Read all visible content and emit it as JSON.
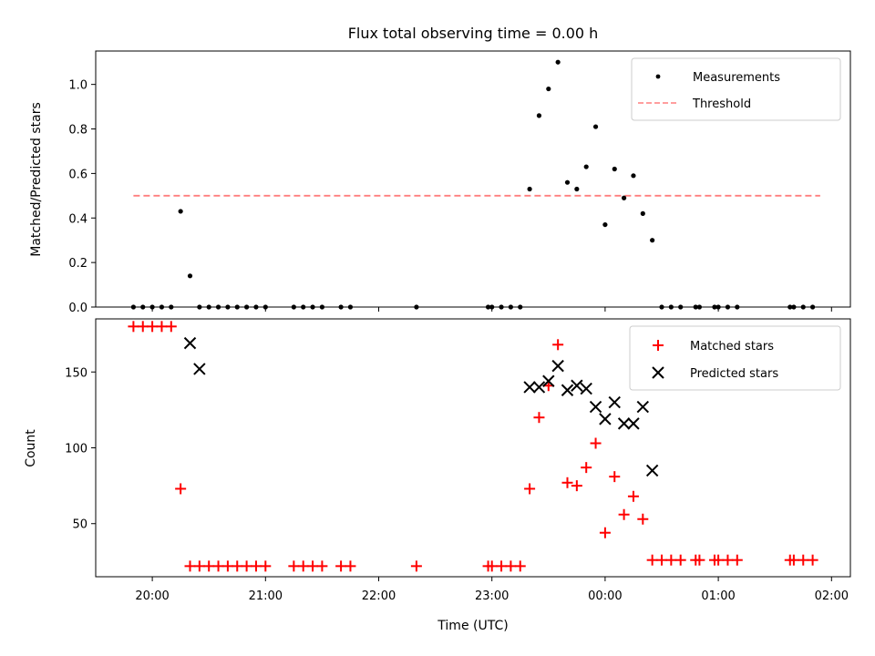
{
  "chart_data": [
    {
      "type": "scatter",
      "title": "Flux total observing time = 0.00 h",
      "xlabel": "",
      "ylabel": "Matched/Predicted stars",
      "xlim": [
        "19:30",
        "02:10"
      ],
      "ylim": [
        0,
        1.15
      ],
      "yticks": [
        "0.0",
        "0.2",
        "0.4",
        "0.6",
        "0.8",
        "1.0"
      ],
      "legend_position": "top-right",
      "series": [
        {
          "name": "Measurements",
          "kind": "scatter",
          "color": "#000000",
          "x": [
            "19:50",
            "19:55",
            "20:00",
            "20:05",
            "20:10",
            "20:15",
            "20:20",
            "20:25",
            "20:30",
            "20:35",
            "20:40",
            "20:45",
            "20:50",
            "20:55",
            "21:00",
            "21:15",
            "21:20",
            "21:25",
            "21:30",
            "21:40",
            "21:45",
            "22:20",
            "22:58",
            "23:00",
            "23:05",
            "23:10",
            "23:15",
            "23:20",
            "23:25",
            "23:30",
            "23:35",
            "23:40",
            "23:45",
            "23:50",
            "23:55",
            "00:00",
            "00:05",
            "00:10",
            "00:15",
            "00:20",
            "00:25",
            "00:30",
            "00:35",
            "00:40",
            "00:48",
            "00:50",
            "00:58",
            "01:00",
            "01:05",
            "01:10",
            "01:38",
            "01:40",
            "01:45",
            "01:50"
          ],
          "y": [
            0,
            0,
            0,
            0,
            0,
            0.43,
            0.14,
            0,
            0,
            0,
            0,
            0,
            0,
            0,
            0,
            0,
            0,
            0,
            0,
            0,
            0,
            0,
            0,
            0,
            0,
            0,
            0,
            0.53,
            0.86,
            0.98,
            1.1,
            0.56,
            0.53,
            0.63,
            0.81,
            0.37,
            0.62,
            0.49,
            0.59,
            0.42,
            0.3,
            0,
            0,
            0,
            0,
            0,
            0,
            0,
            0,
            0,
            0,
            0,
            0,
            0
          ]
        },
        {
          "name": "Threshold",
          "kind": "line",
          "style": "dashed",
          "color": "#ff7f7f",
          "x": [
            "19:50",
            "01:54"
          ],
          "y": [
            0.5,
            0.5
          ]
        }
      ]
    },
    {
      "type": "scatter",
      "title": "",
      "xlabel": "Time (UTC)",
      "ylabel": "Count",
      "xlim": [
        "19:30",
        "02:10"
      ],
      "ylim": [
        15,
        185
      ],
      "xticks": [
        "20:00",
        "21:00",
        "22:00",
        "23:00",
        "00:00",
        "01:00",
        "02:00"
      ],
      "yticks": [
        "50",
        "100",
        "150"
      ],
      "legend_position": "top-right",
      "series": [
        {
          "name": "Matched stars",
          "marker": "plus",
          "color": "#ff0000",
          "x": [
            "19:50",
            "19:55",
            "20:00",
            "20:05",
            "20:10",
            "20:15",
            "20:20",
            "20:25",
            "20:30",
            "20:35",
            "20:40",
            "20:45",
            "20:50",
            "20:55",
            "21:00",
            "21:15",
            "21:20",
            "21:25",
            "21:30",
            "21:40",
            "21:45",
            "22:20",
            "22:58",
            "23:00",
            "23:05",
            "23:10",
            "23:15",
            "23:20",
            "23:25",
            "23:30",
            "23:35",
            "23:40",
            "23:45",
            "23:50",
            "23:55",
            "00:00",
            "00:05",
            "00:10",
            "00:15",
            "00:20",
            "00:25",
            "00:30",
            "00:35",
            "00:40",
            "00:48",
            "00:50",
            "00:58",
            "01:00",
            "01:05",
            "01:10",
            "01:38",
            "01:40",
            "01:45",
            "01:50"
          ],
          "y": [
            180,
            180,
            180,
            180,
            180,
            73,
            22,
            22,
            22,
            22,
            22,
            22,
            22,
            22,
            22,
            22,
            22,
            22,
            22,
            22,
            22,
            22,
            22,
            22,
            22,
            22,
            22,
            73,
            120,
            141,
            168,
            77,
            75,
            87,
            103,
            44,
            81,
            56,
            68,
            53,
            26,
            26,
            26,
            26,
            26,
            26,
            26,
            26,
            26,
            26,
            26,
            26,
            26,
            26
          ]
        },
        {
          "name": "Predicted stars",
          "marker": "x",
          "color": "#000000",
          "x": [
            "20:20",
            "20:25",
            "23:20",
            "23:25",
            "23:30",
            "23:35",
            "23:40",
            "23:45",
            "23:50",
            "23:55",
            "00:00",
            "00:05",
            "00:10",
            "00:15",
            "00:20",
            "00:25"
          ],
          "y": [
            169,
            152,
            140,
            140,
            144,
            154,
            138,
            141,
            139,
            127,
            119,
            130,
            116,
            116,
            127,
            85
          ]
        }
      ]
    }
  ]
}
